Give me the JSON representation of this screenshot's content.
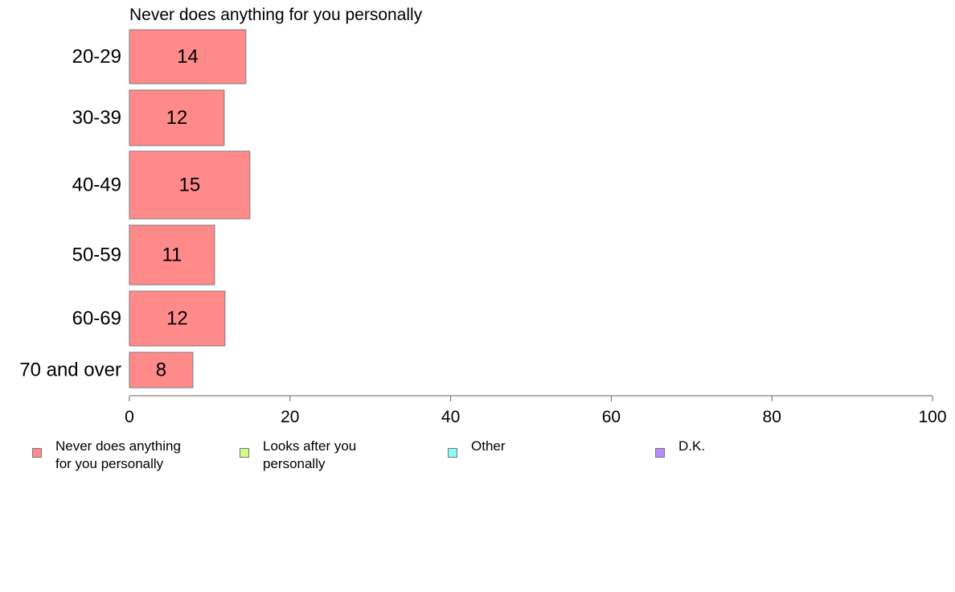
{
  "chart_data": {
    "type": "bar",
    "orientation": "horizontal",
    "title": "Never does anything for you personally",
    "categories": [
      "20-29",
      "30-39",
      "40-49",
      "50-59",
      "60-69",
      "70 and over"
    ],
    "series": [
      {
        "name": "Never does anything for you personally",
        "color": "#ff8a8a",
        "values": [
          14.5,
          11.8,
          15,
          10.6,
          11.9,
          7.9
        ],
        "labels": [
          "14",
          "12",
          "15",
          "11",
          "12",
          "8"
        ]
      }
    ],
    "xlim": [
      0,
      100
    ],
    "xticks": [
      "0",
      "20",
      "40",
      "60",
      "80",
      "100"
    ],
    "grid": false,
    "legend": {
      "position": "bottom",
      "items": [
        {
          "label_lines": [
            "Never does anything",
            "for you personally"
          ],
          "color": "#ff8a8a"
        },
        {
          "label_lines": [
            "Looks after you personally"
          ],
          "color": "#ccff88"
        },
        {
          "label_lines": [
            "Other"
          ],
          "color": "#88ffff"
        },
        {
          "label_lines": [
            "D.K."
          ],
          "color": "#bb88ff"
        }
      ]
    }
  }
}
